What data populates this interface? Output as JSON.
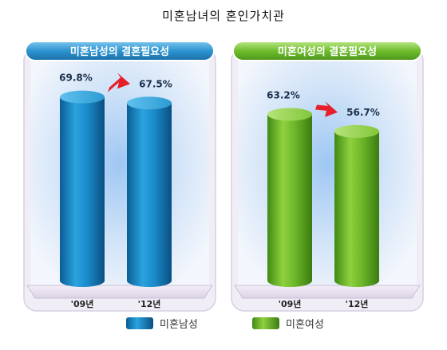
{
  "title": "미혼남녀의 혼인가치관",
  "colors": {
    "male_bar": "#1e8fcc",
    "female_bar": "#7cc233",
    "male_header": "#2b8fc9",
    "female_header": "#6fbd2c",
    "arrow": "#e6202a"
  },
  "legend": [
    {
      "label": "미혼남성",
      "color": "#1e8fcc"
    },
    {
      "label": "미혼여성",
      "color": "#7cc233"
    }
  ],
  "chart_data": [
    {
      "type": "bar",
      "title": "미혼남성의 결혼필요성",
      "categories": [
        "'09년",
        "'12년"
      ],
      "series": [
        {
          "name": "미혼남성",
          "values": [
            69.8,
            67.5
          ]
        }
      ],
      "value_labels": [
        "69.8%",
        "67.5%"
      ],
      "trend_arrow": "down"
    },
    {
      "type": "bar",
      "title": "미혼여성의 결혼필요성",
      "categories": [
        "'09년",
        "'12년"
      ],
      "series": [
        {
          "name": "미혼여성",
          "values": [
            63.2,
            56.7
          ]
        }
      ],
      "value_labels": [
        "63.2%",
        "56.7%"
      ],
      "trend_arrow": "down"
    }
  ]
}
